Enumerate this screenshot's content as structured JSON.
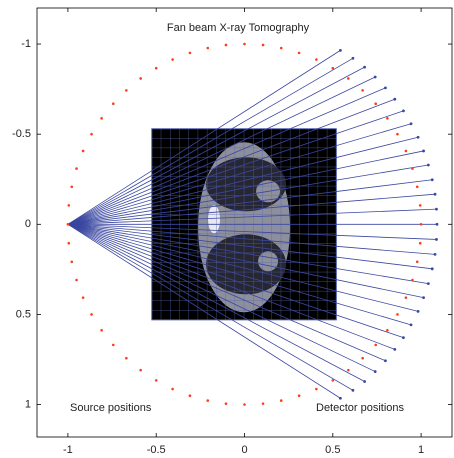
{
  "chart_data": {
    "type": "fan-beam",
    "title": "Fan beam X-ray Tomography",
    "annotations": [
      "Source positions",
      "Detector positions"
    ],
    "xlim": [
      -1.175,
      1.175
    ],
    "ylim": [
      -1.2,
      1.18
    ],
    "y_reversed": true,
    "xticks": [
      -1,
      -0.5,
      0,
      0.5,
      1
    ],
    "yticks": [
      -1,
      -0.5,
      0,
      0.5,
      1
    ],
    "image": {
      "xlim": [
        -0.525,
        0.52
      ],
      "ylim": [
        -0.53,
        0.53
      ]
    },
    "source": {
      "x": -1,
      "y": 0
    },
    "source_positions": {
      "color": "#ff3b1a",
      "x": [
        1,
        0.995,
        0.978,
        0.951,
        0.914,
        0.866,
        0.809,
        0.743,
        0.669,
        0.588,
        0.5,
        0.407,
        0.309,
        0.208,
        0.105,
        0,
        -0.105,
        -0.208,
        -0.309,
        -0.407,
        -0.5,
        -0.588,
        -0.669,
        -0.743,
        -0.809,
        -0.866,
        -0.914,
        -0.951,
        -0.978,
        -0.995,
        -1,
        -0.995,
        -0.978,
        -0.951,
        -0.914,
        -0.866,
        -0.809,
        -0.743,
        -0.669,
        -0.588,
        -0.5,
        -0.407,
        -0.309,
        -0.208,
        -0.105,
        0,
        0.105,
        0.208,
        0.309,
        0.407,
        0.5,
        0.588,
        0.669,
        0.743,
        0.809,
        0.866,
        0.914,
        0.951,
        0.978,
        0.995
      ],
      "y": [
        0,
        0.105,
        0.208,
        0.309,
        0.407,
        0.5,
        0.588,
        0.669,
        0.743,
        0.809,
        0.866,
        0.914,
        0.951,
        0.978,
        0.995,
        1,
        0.995,
        0.978,
        0.951,
        0.914,
        0.866,
        0.809,
        0.743,
        0.669,
        0.588,
        0.5,
        0.407,
        0.309,
        0.208,
        0.105,
        0,
        -0.105,
        -0.208,
        -0.309,
        -0.407,
        -0.5,
        -0.588,
        -0.669,
        -0.743,
        -0.809,
        -0.866,
        -0.914,
        -0.951,
        -0.978,
        -0.995,
        -1,
        -0.995,
        -0.978,
        -0.951,
        -0.914,
        -0.866,
        -0.809,
        -0.743,
        -0.669,
        -0.588,
        -0.5,
        -0.407,
        -0.309,
        -0.208,
        -0.105
      ]
    },
    "detectors": {
      "color": "#3a47a0",
      "x": [
        0.543,
        0.614,
        0.68,
        0.74,
        0.798,
        0.851,
        0.9,
        0.943,
        0.983,
        1.014,
        1.041,
        1.063,
        1.079,
        1.087,
        1.09,
        1.087,
        1.079,
        1.063,
        1.041,
        1.014,
        0.983,
        0.943,
        0.9,
        0.851,
        0.798,
        0.74,
        0.68,
        0.614,
        0.543
      ],
      "y": [
        -0.965,
        -0.921,
        -0.872,
        -0.817,
        -0.757,
        -0.694,
        -0.629,
        -0.558,
        -0.483,
        -0.407,
        -0.329,
        -0.247,
        -0.167,
        -0.084,
        0,
        0.084,
        0.167,
        0.247,
        0.329,
        0.407,
        0.483,
        0.558,
        0.629,
        0.694,
        0.757,
        0.817,
        0.872,
        0.921,
        0.965
      ]
    }
  }
}
